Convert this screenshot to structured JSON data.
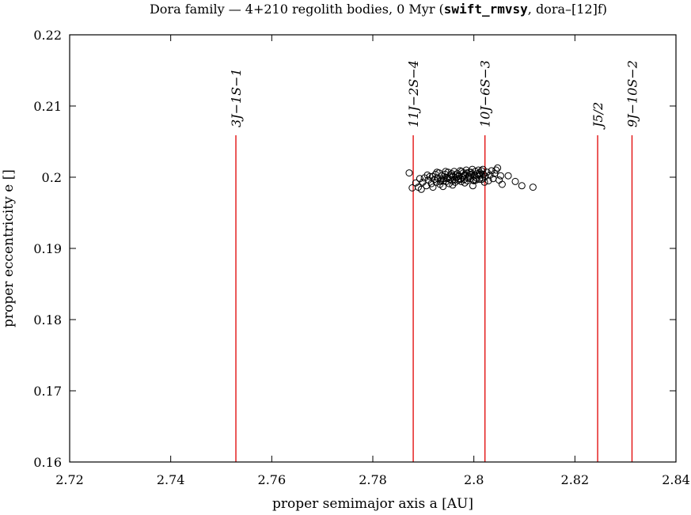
{
  "chart_data": {
    "type": "scatter",
    "title": "Dora family — 4+210 regolith bodies, 0 Myr (",
    "title_code": "swift_rmvsy",
    "title_tail": ", dora–[12]f)",
    "xlabel": "proper semimajor axis a [AU]",
    "ylabel": "proper eccentricity e []",
    "xlim": [
      2.72,
      2.84
    ],
    "ylim": [
      0.16,
      0.22
    ],
    "x_ticks": [
      "2.72",
      "2.74",
      "2.76",
      "2.78",
      "2.8",
      "2.82",
      "2.84"
    ],
    "y_ticks": [
      "0.16",
      "0.17",
      "0.18",
      "0.19",
      "0.2",
      "0.21",
      "0.22"
    ],
    "resonances": [
      {
        "label": "3J−1S−1",
        "a": 2.7529
      },
      {
        "label": "11J−2S−4",
        "a": 2.788
      },
      {
        "label": "10J−6S−3",
        "a": 2.8022
      },
      {
        "label": "J5/2",
        "a": 2.8245
      },
      {
        "label": "9J−10S−2",
        "a": 2.8313
      }
    ],
    "resonance_color": "#e00000",
    "marker_color": "#000000",
    "points": [
      [
        2.7872,
        0.2006
      ],
      [
        2.7878,
        0.1985
      ],
      [
        2.7885,
        0.1992
      ],
      [
        2.789,
        0.1986
      ],
      [
        2.7893,
        0.1998
      ],
      [
        2.7896,
        0.1983
      ],
      [
        2.7899,
        0.1993
      ],
      [
        2.7902,
        0.1999
      ],
      [
        2.7906,
        0.1988
      ],
      [
        2.791,
        0.1996
      ],
      [
        2.7913,
        0.2001
      ],
      [
        2.7916,
        0.1991
      ],
      [
        2.7919,
        0.1986
      ],
      [
        2.7922,
        0.1997
      ],
      [
        2.7924,
        0.2004
      ],
      [
        2.7926,
        0.1993
      ],
      [
        2.7928,
        0.1999
      ],
      [
        2.7931,
        0.2006
      ],
      [
        2.7933,
        0.199
      ],
      [
        2.7935,
        0.1996
      ],
      [
        2.7937,
        0.2002
      ],
      [
        2.7939,
        0.1987
      ],
      [
        2.7941,
        0.1998
      ],
      [
        2.7943,
        0.2004
      ],
      [
        2.7945,
        0.1994
      ],
      [
        2.7947,
        0.2
      ],
      [
        2.7949,
        0.2007
      ],
      [
        2.7951,
        0.1991
      ],
      [
        2.7953,
        0.1997
      ],
      [
        2.7955,
        0.2003
      ],
      [
        2.7957,
        0.1995
      ],
      [
        2.7959,
        0.2001
      ],
      [
        2.7961,
        0.2008
      ],
      [
        2.7963,
        0.1993
      ],
      [
        2.7965,
        0.1999
      ],
      [
        2.7967,
        0.2005
      ],
      [
        2.7969,
        0.1996
      ],
      [
        2.7971,
        0.2002
      ],
      [
        2.7973,
        0.2009
      ],
      [
        2.7975,
        0.1994
      ],
      [
        2.7977,
        0.2
      ],
      [
        2.7979,
        0.2006
      ],
      [
        2.7981,
        0.1997
      ],
      [
        2.7983,
        0.2003
      ],
      [
        2.7985,
        0.201
      ],
      [
        2.7987,
        0.1995
      ],
      [
        2.7989,
        0.2001
      ],
      [
        2.7991,
        0.2007
      ],
      [
        2.7993,
        0.1998
      ],
      [
        2.7995,
        0.2004
      ],
      [
        2.7997,
        0.2011
      ],
      [
        2.7999,
        0.1996
      ],
      [
        2.8001,
        0.2002
      ],
      [
        2.8003,
        0.2008
      ],
      [
        2.8005,
        0.1999
      ],
      [
        2.8007,
        0.2005
      ],
      [
        2.8009,
        0.201
      ],
      [
        2.8011,
        0.1997
      ],
      [
        2.8013,
        0.2003
      ],
      [
        2.8015,
        0.2009
      ],
      [
        2.8017,
        0.1999
      ],
      [
        2.8019,
        0.2004
      ],
      [
        2.8021,
        0.1993
      ],
      [
        2.8023,
        0.2001
      ],
      [
        2.8026,
        0.2007
      ],
      [
        2.8029,
        0.1995
      ],
      [
        2.8032,
        0.2003
      ],
      [
        2.8035,
        0.2009
      ],
      [
        2.8038,
        0.1998
      ],
      [
        2.8041,
        0.2005
      ],
      [
        2.8044,
        0.201
      ],
      [
        2.8047,
        0.2013
      ],
      [
        2.805,
        0.1996
      ],
      [
        2.8053,
        0.2002
      ],
      [
        2.8056,
        0.199
      ],
      [
        2.8068,
        0.2002
      ],
      [
        2.8082,
        0.1994
      ],
      [
        2.8095,
        0.1988
      ],
      [
        2.8117,
        0.1986
      ],
      [
        2.7918,
        0.2001
      ],
      [
        2.7934,
        0.1994
      ],
      [
        2.7944,
        0.2008
      ],
      [
        2.7952,
        0.2001
      ],
      [
        2.7958,
        0.1989
      ],
      [
        2.7964,
        0.2003
      ],
      [
        2.797,
        0.1998
      ],
      [
        2.7976,
        0.2008
      ],
      [
        2.7982,
        0.1992
      ],
      [
        2.7988,
        0.1999
      ],
      [
        2.7994,
        0.2007
      ],
      [
        2.8,
        0.1995
      ],
      [
        2.8006,
        0.2002
      ],
      [
        2.8012,
        0.2006
      ],
      [
        2.8018,
        0.2011
      ],
      [
        2.7908,
        0.2003
      ],
      [
        2.7927,
        0.2007
      ],
      [
        2.794,
        0.1995
      ],
      [
        2.7948,
        0.1998
      ],
      [
        2.7956,
        0.2005
      ],
      [
        2.7962,
        0.1996
      ],
      [
        2.7968,
        0.2001
      ],
      [
        2.7974,
        0.1997
      ],
      [
        2.798,
        0.2002
      ],
      [
        2.7986,
        0.2006
      ],
      [
        2.7992,
        0.2001
      ],
      [
        2.7998,
        0.1988
      ],
      [
        2.8004,
        0.1996
      ],
      [
        2.801,
        0.2004
      ],
      [
        2.8016,
        0.1997
      ]
    ]
  }
}
